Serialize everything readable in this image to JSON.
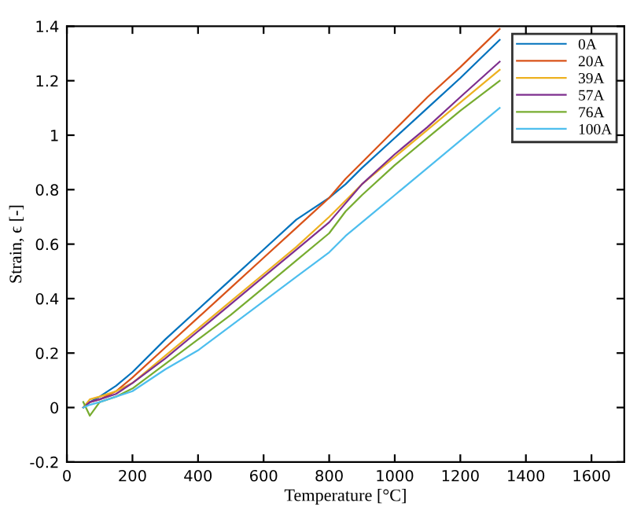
{
  "chart_data": {
    "type": "line",
    "xlabel": "Temperature [°C]",
    "ylabel": "Strain, ϵ [-]",
    "x": [
      50,
      70,
      100,
      150,
      200,
      300,
      400,
      500,
      600,
      700,
      800,
      850,
      900,
      1000,
      1100,
      1200,
      1320
    ],
    "series": [
      {
        "name": "0A",
        "color": "#0072bd",
        "values": [
          0,
          0.02,
          0.04,
          0.08,
          0.13,
          0.25,
          0.36,
          0.47,
          0.58,
          0.69,
          0.77,
          0.82,
          0.88,
          0.99,
          1.1,
          1.21,
          1.35
        ]
      },
      {
        "name": "20A",
        "color": "#d95319",
        "values": [
          0,
          0.02,
          0.03,
          0.06,
          0.11,
          0.22,
          0.33,
          0.44,
          0.55,
          0.66,
          0.77,
          0.84,
          0.9,
          1.02,
          1.14,
          1.25,
          1.39
        ]
      },
      {
        "name": "39A",
        "color": "#edb120",
        "values": [
          0,
          0.03,
          0.04,
          0.06,
          0.09,
          0.19,
          0.29,
          0.39,
          0.49,
          0.59,
          0.7,
          0.76,
          0.82,
          0.92,
          1.02,
          1.12,
          1.24
        ]
      },
      {
        "name": "57A",
        "color": "#7e2f8e",
        "values": [
          0,
          0.02,
          0.03,
          0.05,
          0.09,
          0.18,
          0.28,
          0.38,
          0.48,
          0.58,
          0.68,
          0.75,
          0.82,
          0.93,
          1.03,
          1.14,
          1.27
        ]
      },
      {
        "name": "76A",
        "color": "#77ac30",
        "values": [
          0.02,
          -0.03,
          0.02,
          0.04,
          0.07,
          0.16,
          0.25,
          0.34,
          0.44,
          0.54,
          0.64,
          0.72,
          0.78,
          0.89,
          0.99,
          1.09,
          1.2
        ]
      },
      {
        "name": "100A",
        "color": "#4dbeee",
        "values": [
          0,
          0.01,
          0.02,
          0.04,
          0.06,
          0.14,
          0.21,
          0.3,
          0.39,
          0.48,
          0.57,
          0.63,
          0.68,
          0.78,
          0.88,
          0.98,
          1.1
        ]
      }
    ],
    "xlim": [
      0,
      1700
    ],
    "xticks": [
      0,
      200,
      400,
      600,
      800,
      1000,
      1200,
      1400,
      1600
    ],
    "ylim": [
      -0.2,
      1.4
    ],
    "yticks": [
      -0.2,
      0,
      0.2,
      0.4,
      0.6,
      0.8,
      1,
      1.2,
      1.4
    ],
    "grid": false,
    "legend": "top right",
    "marker": "none",
    "line_style": "solid"
  }
}
